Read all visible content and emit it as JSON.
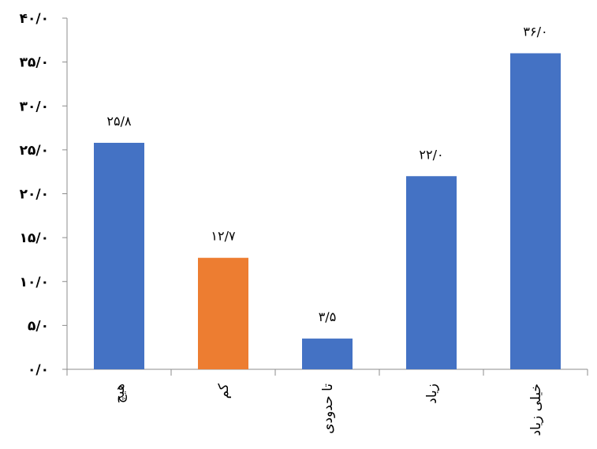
{
  "chart_data": {
    "type": "bar",
    "categories": [
      "هیچ",
      "کم",
      "تا حدودی",
      "زیاد",
      "خیلی زیاد"
    ],
    "values": [
      25.8,
      12.7,
      3.5,
      22.0,
      36.0
    ],
    "value_labels": [
      "۲۵/۸",
      "۱۲/۷",
      "۳/۵",
      "۲۲/۰",
      "۳۶/۰"
    ],
    "ylim": [
      0,
      40
    ],
    "yticks": [
      0,
      5,
      10,
      15,
      20,
      25,
      30,
      35,
      40
    ],
    "ytick_labels": [
      "۰/۰",
      "۵/۰",
      "۱۰/۰",
      "۱۵/۰",
      "۲۰/۰",
      "۲۵/۰",
      "۳۰/۰",
      "۳۵/۰",
      "۴۰/۰"
    ],
    "bar_colors": [
      "#4472C4",
      "#ED7D31",
      "#4472C4",
      "#4472C4",
      "#4472C4"
    ],
    "title": "",
    "xlabel": "",
    "ylabel": "",
    "grid": false,
    "legend": "none"
  }
}
